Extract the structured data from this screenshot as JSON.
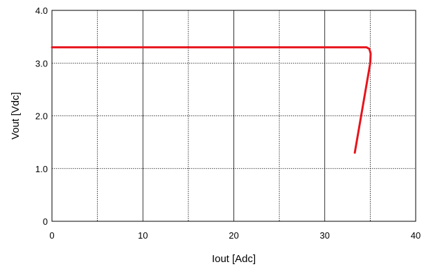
{
  "chart_data": {
    "type": "line",
    "title": "",
    "xlabel": "Iout [Adc]",
    "ylabel": "Vout [Vdc]",
    "xlim": [
      0,
      40
    ],
    "ylim": [
      0,
      4.0
    ],
    "x_ticks": [
      0,
      10,
      20,
      30,
      40
    ],
    "x_tick_labels": [
      "0",
      "10",
      "20",
      "30",
      "40"
    ],
    "y_ticks": [
      0,
      1,
      2,
      3,
      4
    ],
    "y_tick_labels": [
      "0",
      "1.0",
      "2.0",
      "3.0",
      "4.0"
    ],
    "grid": true,
    "grid_x_step": 5,
    "grid_y_step": 1,
    "series": [
      {
        "color": "#e8141c",
        "x": [
          0,
          34.6,
          34.9,
          35.05,
          35.0,
          33.3
        ],
        "y": [
          3.3,
          3.3,
          3.27,
          3.18,
          3.0,
          1.3
        ]
      }
    ]
  }
}
